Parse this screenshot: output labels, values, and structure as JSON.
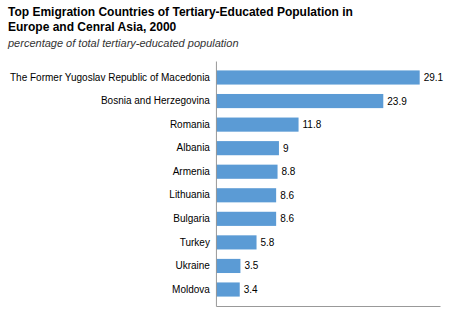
{
  "chart_data": {
    "type": "bar",
    "orientation": "horizontal",
    "title": [
      "Top Emigration Countries of Tertiary-Educated Population in",
      "Europe and Cenral Asia, 2000"
    ],
    "subtitle": "percentage of total tertiary-educated population",
    "categories": [
      "Moldova",
      "Ukraine",
      "Turkey",
      "Bulgaria",
      "Lithuania",
      "Armenia",
      "Albania",
      "Romania",
      "Bosnia and Herzegovina",
      "The Former Yugoslav Republic of Macedonia"
    ],
    "values": [
      3.4,
      3.5,
      5.8,
      8.6,
      8.6,
      8.8,
      9.0,
      11.8,
      23.9,
      29.1
    ],
    "value_labels": [
      "3.4",
      "3.5",
      "5.8",
      "8.6",
      "8.6",
      "8.8",
      "9",
      "11.8",
      "23.9",
      "29.1"
    ],
    "color": "#5b9bd5",
    "xlim": [
      0,
      32
    ],
    "data_labels": true,
    "tick_labels": "y",
    "grid": false
  }
}
